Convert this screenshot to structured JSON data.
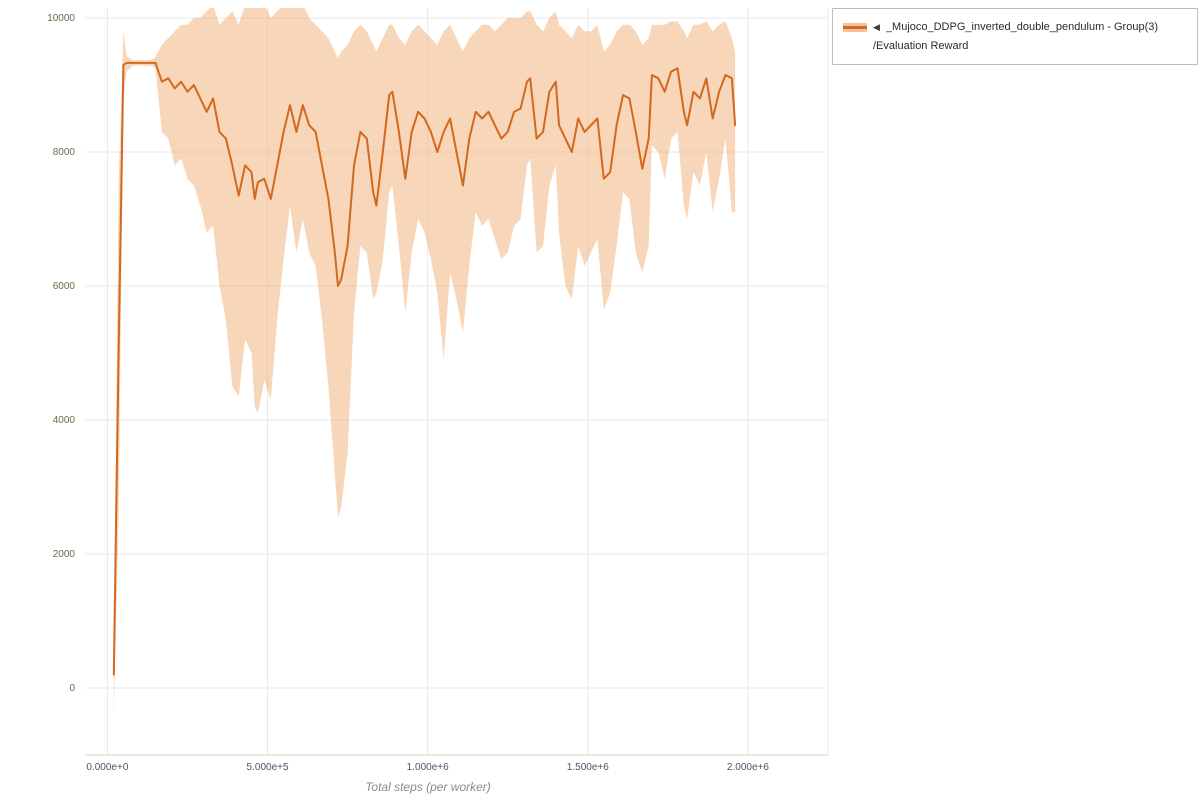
{
  "legend": {
    "arrow": "◀",
    "series_name": "_Mujoco_DDPG_inverted_double_pendulum - Group(3)",
    "metric": "/Evaluation Reward"
  },
  "colors": {
    "line": "#d2691e",
    "band": "#f0a366",
    "grid": "#e8e8e8",
    "axis": "#d0d0d0",
    "xtick_text": "#4a5568",
    "ytick_text": "#6b6b4f"
  },
  "chart_data": {
    "type": "line",
    "title": "",
    "xlabel": "Total steps (per worker)",
    "ylabel": "",
    "legend_position": "top-right",
    "grid": true,
    "xlim": [
      -70000,
      2250000
    ],
    "ylim": [
      -1000,
      10150
    ],
    "x_ticks": [
      {
        "value": 0,
        "label": "0.000e+0"
      },
      {
        "value": 500000,
        "label": "5.000e+5"
      },
      {
        "value": 1000000,
        "label": "1.000e+6"
      },
      {
        "value": 1500000,
        "label": "1.500e+6"
      },
      {
        "value": 2000000,
        "label": "2.000e+6"
      }
    ],
    "y_ticks": [
      {
        "value": 0,
        "label": "0"
      },
      {
        "value": 2000,
        "label": "2000"
      },
      {
        "value": 4000,
        "label": "4000"
      },
      {
        "value": 6000,
        "label": "6000"
      },
      {
        "value": 8000,
        "label": "8000"
      },
      {
        "value": 10000,
        "label": "10000"
      }
    ],
    "series": [
      {
        "name": "_Mujoco_DDPG_inverted_double_pendulum - Group(3) /Evaluation Reward",
        "color": "#d2691e",
        "band_color": "#f0a366",
        "x": [
          20000,
          35000,
          50000,
          60000,
          80000,
          100000,
          120000,
          140000,
          150000,
          170000,
          190000,
          210000,
          230000,
          250000,
          270000,
          290000,
          310000,
          330000,
          350000,
          370000,
          390000,
          410000,
          430000,
          450000,
          460000,
          470000,
          490000,
          510000,
          530000,
          550000,
          570000,
          590000,
          610000,
          630000,
          650000,
          670000,
          690000,
          710000,
          720000,
          730000,
          750000,
          770000,
          790000,
          810000,
          830000,
          840000,
          860000,
          880000,
          890000,
          910000,
          930000,
          950000,
          970000,
          990000,
          1010000,
          1030000,
          1050000,
          1070000,
          1090000,
          1110000,
          1130000,
          1150000,
          1170000,
          1190000,
          1210000,
          1230000,
          1250000,
          1270000,
          1290000,
          1310000,
          1320000,
          1340000,
          1360000,
          1380000,
          1400000,
          1410000,
          1430000,
          1450000,
          1470000,
          1490000,
          1510000,
          1530000,
          1550000,
          1570000,
          1590000,
          1610000,
          1630000,
          1650000,
          1670000,
          1690000,
          1700000,
          1720000,
          1740000,
          1760000,
          1780000,
          1800000,
          1810000,
          1830000,
          1850000,
          1870000,
          1890000,
          1910000,
          1930000,
          1950000,
          1960000
        ],
        "mean": [
          200,
          5000,
          9300,
          9330,
          9330,
          9330,
          9330,
          9330,
          9330,
          9050,
          9100,
          8950,
          9050,
          8900,
          9000,
          8800,
          8600,
          8800,
          8300,
          8200,
          7800,
          7350,
          7800,
          7700,
          7300,
          7550,
          7600,
          7300,
          7800,
          8300,
          8700,
          8300,
          8700,
          8400,
          8300,
          7800,
          7300,
          6500,
          6000,
          6100,
          6600,
          7800,
          8300,
          8200,
          7400,
          7200,
          8000,
          8850,
          8900,
          8300,
          7600,
          8300,
          8600,
          8500,
          8300,
          8000,
          8300,
          8500,
          8000,
          7500,
          8200,
          8600,
          8500,
          8600,
          8400,
          8200,
          8300,
          8600,
          8650,
          9050,
          9100,
          8200,
          8300,
          8900,
          9050,
          8400,
          8200,
          8000,
          8500,
          8300,
          8400,
          8500,
          7600,
          7700,
          8400,
          8850,
          8800,
          8300,
          7750,
          8200,
          9150,
          9100,
          8900,
          9200,
          9250,
          8600,
          8400,
          8900,
          8800,
          9100,
          8500,
          8900,
          9150,
          9100,
          8400
        ],
        "lower": [
          -400,
          2500,
          8800,
          9200,
          9290,
          9290,
          9290,
          9280,
          9250,
          8300,
          8200,
          7800,
          7900,
          7600,
          7500,
          7200,
          6800,
          6900,
          6000,
          5500,
          4500,
          4350,
          5200,
          5000,
          4200,
          4100,
          4600,
          4300,
          5500,
          6400,
          7200,
          6500,
          7000,
          6500,
          6300,
          5500,
          4500,
          3200,
          2550,
          2700,
          3500,
          5600,
          6600,
          6500,
          5800,
          5900,
          6400,
          7400,
          7500,
          6600,
          5600,
          6500,
          7000,
          6800,
          6400,
          5900,
          4900,
          6200,
          5800,
          5300,
          6300,
          7100,
          6900,
          7000,
          6700,
          6400,
          6500,
          6900,
          7000,
          7800,
          7900,
          6500,
          6600,
          7500,
          7800,
          6800,
          6000,
          5800,
          6600,
          6300,
          6500,
          6700,
          5650,
          5900,
          6600,
          7400,
          7300,
          6500,
          6200,
          6600,
          8100,
          8000,
          7600,
          8200,
          8300,
          7200,
          7000,
          7700,
          7500,
          8000,
          7100,
          7600,
          8200,
          7100,
          7100
        ],
        "upper": [
          600,
          7500,
          9800,
          9430,
          9370,
          9370,
          9370,
          9380,
          9420,
          9600,
          9700,
          9800,
          9900,
          9900,
          10000,
          10000,
          10100,
          10200,
          9900,
          10000,
          10100,
          9900,
          10200,
          10300,
          10200,
          10300,
          10200,
          10000,
          10100,
          10200,
          10200,
          10300,
          10200,
          10000,
          9900,
          9800,
          9700,
          9500,
          9400,
          9500,
          9600,
          9800,
          9900,
          9800,
          9600,
          9500,
          9700,
          9900,
          9900,
          9700,
          9600,
          9800,
          9900,
          9800,
          9700,
          9600,
          9800,
          9900,
          9700,
          9500,
          9700,
          9800,
          9900,
          9900,
          9800,
          9900,
          10000,
          10000,
          10000,
          10100,
          10100,
          9900,
          9800,
          10000,
          10100,
          9900,
          9800,
          9700,
          9900,
          9800,
          9800,
          9900,
          9500,
          9600,
          9800,
          9900,
          9900,
          9800,
          9600,
          9700,
          9900,
          9900,
          9900,
          9950,
          9950,
          9800,
          9700,
          9900,
          9900,
          9950,
          9800,
          9900,
          9950,
          9700,
          9500
        ]
      }
    ]
  }
}
